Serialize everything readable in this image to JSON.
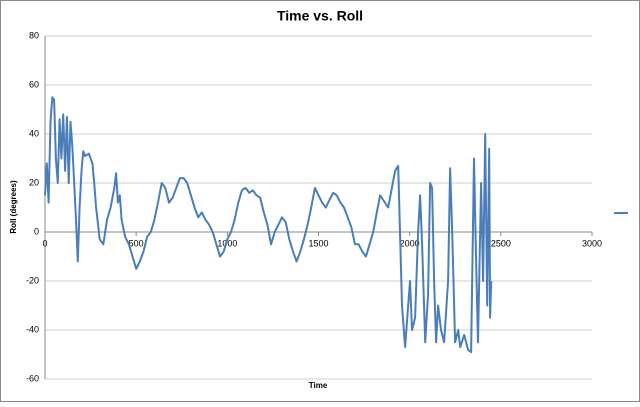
{
  "chart_data": {
    "type": "line",
    "title": "Time vs. Roll",
    "x_label": "Time",
    "y_label": "Roll (degrees)",
    "x": [
      0,
      10,
      20,
      30,
      40,
      50,
      60,
      70,
      80,
      90,
      100,
      110,
      120,
      130,
      140,
      150,
      160,
      170,
      180,
      190,
      200,
      210,
      220,
      240,
      250,
      260,
      270,
      280,
      300,
      320,
      340,
      360,
      380,
      390,
      400,
      410,
      420,
      440,
      460,
      480,
      500,
      520,
      540,
      560,
      580,
      600,
      620,
      640,
      660,
      680,
      700,
      720,
      740,
      760,
      780,
      800,
      820,
      840,
      860,
      880,
      900,
      920,
      940,
      960,
      980,
      1000,
      1020,
      1040,
      1060,
      1080,
      1100,
      1120,
      1140,
      1160,
      1180,
      1200,
      1220,
      1240,
      1260,
      1280,
      1300,
      1320,
      1340,
      1360,
      1380,
      1400,
      1420,
      1440,
      1460,
      1480,
      1500,
      1520,
      1540,
      1560,
      1580,
      1600,
      1620,
      1640,
      1660,
      1680,
      1700,
      1720,
      1740,
      1760,
      1780,
      1800,
      1820,
      1838,
      1882,
      1920,
      1937,
      1958,
      1975,
      2002,
      2013,
      2030,
      2046,
      2057,
      2068,
      2085,
      2101,
      2112,
      2123,
      2134,
      2145,
      2156,
      2172,
      2189,
      2211,
      2222,
      2233,
      2249,
      2266,
      2277,
      2299,
      2320,
      2337,
      2353,
      2364,
      2375,
      2392,
      2403,
      2414,
      2425,
      2436,
      2441,
      2447
    ],
    "series": [
      {
        "color": "#4a7ebb",
        "values": [
          15,
          28,
          12,
          45,
          55,
          54,
          30,
          20,
          46,
          30,
          48,
          25,
          47,
          20,
          45,
          35,
          20,
          5,
          -12,
          10,
          25,
          33,
          31,
          32,
          30,
          28,
          20,
          10,
          -3,
          -5,
          5,
          10,
          18,
          24,
          12,
          15,
          5,
          -2,
          -5,
          -10,
          -15,
          -12,
          -8,
          -2,
          0,
          5,
          12,
          20,
          18,
          12,
          14,
          18,
          22,
          22,
          20,
          15,
          10,
          6,
          8,
          5,
          3,
          0,
          -5,
          -10,
          -8,
          -3,
          0,
          5,
          12,
          17,
          18,
          16,
          17,
          15,
          14,
          8,
          3,
          -5,
          0,
          3,
          6,
          4,
          -3,
          -8,
          -12,
          -8,
          -3,
          3,
          10,
          18,
          15,
          12,
          10,
          13,
          16,
          15,
          12,
          10,
          6,
          2,
          -5,
          -5,
          -8,
          -10,
          -5,
          0,
          8,
          15,
          10,
          25,
          27,
          -30,
          -47,
          -20,
          -40,
          -35,
          0,
          15,
          -5,
          -45,
          -25,
          20,
          18,
          -20,
          -45,
          -30,
          -40,
          -45,
          -20,
          26,
          0,
          -45,
          -40,
          -47,
          -42,
          -48,
          -49,
          30,
          -10,
          -45,
          20,
          -20,
          40,
          -30,
          34,
          -35,
          -20
        ]
      }
    ],
    "xlim": [
      0,
      3000
    ],
    "xticks": [
      0,
      500,
      1000,
      1500,
      2000,
      2500,
      3000
    ],
    "ylim": [
      -60,
      80
    ],
    "yticks": [
      -60,
      -40,
      -20,
      0,
      20,
      40,
      60,
      80
    ],
    "grid": true,
    "legend": "right"
  }
}
